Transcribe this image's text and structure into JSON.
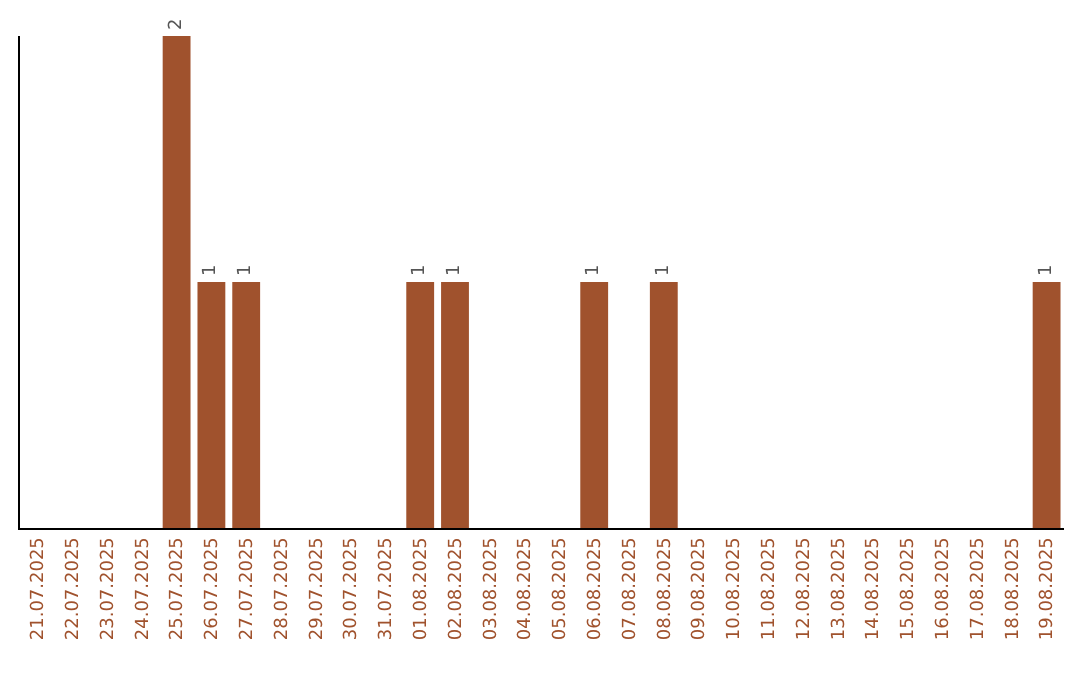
{
  "chart_data": {
    "type": "bar",
    "categories": [
      "21.07.2025",
      "22.07.2025",
      "23.07.2025",
      "24.07.2025",
      "25.07.2025",
      "26.07.2025",
      "27.07.2025",
      "28.07.2025",
      "29.07.2025",
      "30.07.2025",
      "31.07.2025",
      "01.08.2025",
      "02.08.2025",
      "03.08.2025",
      "04.08.2025",
      "05.08.2025",
      "06.08.2025",
      "07.08.2025",
      "08.08.2025",
      "09.08.2025",
      "10.08.2025",
      "11.08.2025",
      "12.08.2025",
      "13.08.2025",
      "14.08.2025",
      "15.08.2025",
      "16.08.2025",
      "17.08.2025",
      "18.08.2025",
      "19.08.2025"
    ],
    "values": [
      0,
      0,
      0,
      0,
      2,
      1,
      1,
      0,
      0,
      0,
      0,
      1,
      1,
      0,
      0,
      0,
      1,
      0,
      1,
      0,
      0,
      0,
      0,
      0,
      0,
      0,
      0,
      0,
      0,
      1
    ],
    "value_labels": [
      null,
      null,
      null,
      null,
      "2",
      "1",
      "1",
      null,
      null,
      null,
      null,
      "1",
      "1",
      null,
      null,
      null,
      "1",
      null,
      "1",
      null,
      null,
      null,
      null,
      null,
      null,
      null,
      null,
      null,
      null,
      "1"
    ],
    "color": "#a0522d",
    "tick_labels": "x"
  }
}
